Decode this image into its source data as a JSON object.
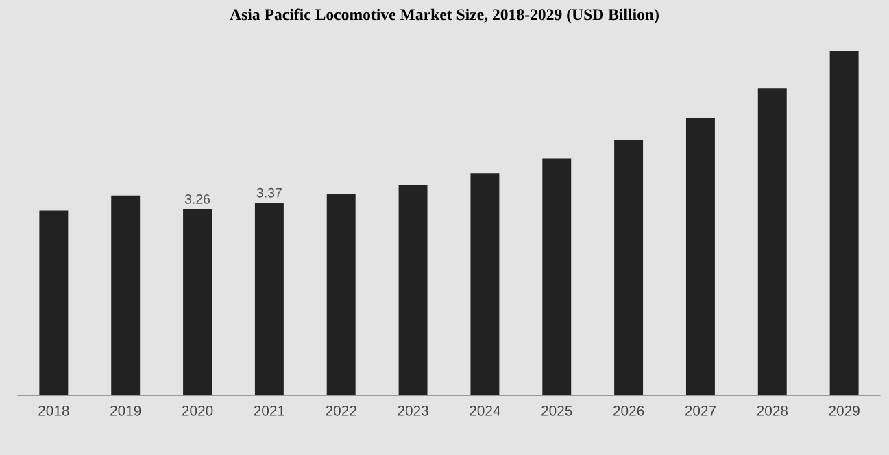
{
  "chart_data": {
    "type": "bar",
    "title": "Asia Pacific Locomotive Market Size, 2018-2029 (USD Billion)",
    "categories": [
      "2018",
      "2019",
      "2020",
      "2021",
      "2022",
      "2023",
      "2024",
      "2025",
      "2026",
      "2027",
      "2028",
      "2029"
    ],
    "values": [
      3.24,
      3.5,
      3.26,
      3.37,
      3.52,
      3.68,
      3.89,
      4.15,
      4.47,
      4.86,
      5.37,
      6.02
    ],
    "value_labels": [
      null,
      null,
      "3.26",
      "3.37",
      null,
      null,
      null,
      null,
      null,
      null,
      null,
      null
    ],
    "color": "#222222",
    "grid": false,
    "legend": false
  }
}
